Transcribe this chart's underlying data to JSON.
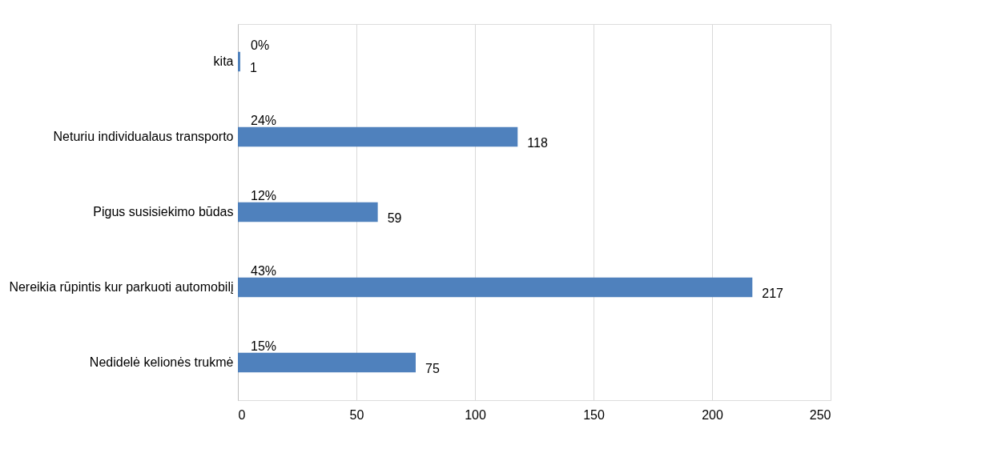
{
  "chart_data": {
    "type": "bar",
    "orientation": "horizontal",
    "categories": [
      "kita",
      "Neturiu individualaus transporto",
      "Pigus susisiekimo būdas",
      "Nereikia rūpintis kur parkuoti automobilį",
      "Nedidelė kelionės trukmė"
    ],
    "values": [
      1,
      118,
      59,
      217,
      75
    ],
    "color": "#4f81bd",
    "xlim": [
      0,
      250
    ],
    "xticks": [
      0,
      50,
      100,
      150,
      200,
      250
    ],
    "grid": "x",
    "data_labels": true,
    "annotations": [
      "0%",
      "24%",
      "12%",
      "43%",
      "15%"
    ]
  }
}
